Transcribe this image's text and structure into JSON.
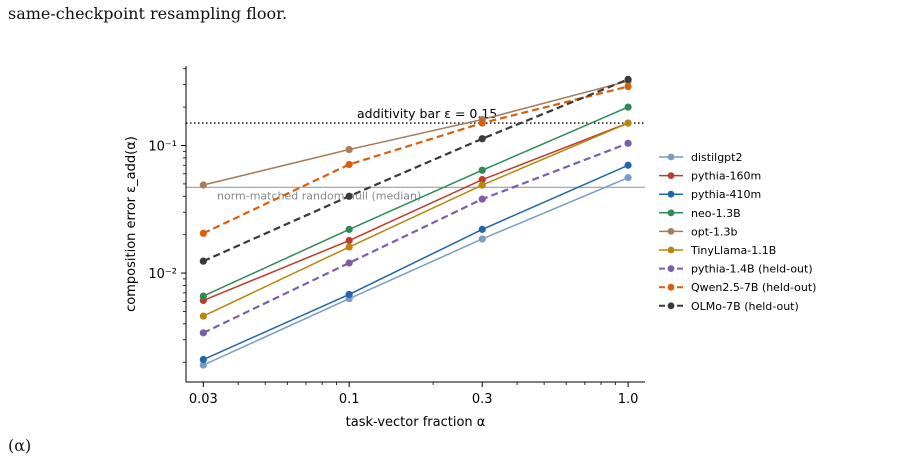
{
  "page": {
    "intro_text": "same-checkpoint resampling floor.",
    "footer_text": "(α)"
  },
  "chart_data": {
    "type": "line",
    "xlabel": "task-vector fraction α",
    "ylabel": "composition error ε_add(α)",
    "x_scale": "log",
    "y_scale": "log",
    "xlim": [
      0.026,
      1.15
    ],
    "ylim": [
      0.0014,
      0.42
    ],
    "x_ticks": [
      {
        "value": 0.03,
        "label": "0.03"
      },
      {
        "value": 0.1,
        "label": "0.1"
      },
      {
        "value": 0.3,
        "label": "0.3"
      },
      {
        "value": 1.0,
        "label": "1.0"
      }
    ],
    "y_ticks": [
      {
        "value": 0.01,
        "label": "10⁻²"
      },
      {
        "value": 0.1,
        "label": "10⁻¹"
      }
    ],
    "x": [
      0.03,
      0.1,
      0.3,
      1.0
    ],
    "series": [
      {
        "name": "distilgpt2",
        "color": "#7a9cc6",
        "dashed": false,
        "values": [
          0.0019,
          0.0063,
          0.0185,
          0.056
        ]
      },
      {
        "name": "pythia-160m",
        "color": "#c0392b",
        "dashed": false,
        "values": [
          0.0061,
          0.018,
          0.054,
          0.15
        ]
      },
      {
        "name": "pythia-410m",
        "color": "#2166ac",
        "dashed": false,
        "values": [
          0.0021,
          0.0068,
          0.022,
          0.07
        ]
      },
      {
        "name": "neo-1.3B",
        "color": "#2e8b57",
        "dashed": false,
        "values": [
          0.0066,
          0.022,
          0.064,
          0.2
        ]
      },
      {
        "name": "opt-1.3b",
        "color": "#a87c5a",
        "dashed": false,
        "values": [
          0.049,
          0.093,
          0.16,
          0.32
        ]
      },
      {
        "name": "TinyLlama-1.1B",
        "color": "#b8860b",
        "dashed": false,
        "values": [
          0.0046,
          0.016,
          0.049,
          0.15
        ]
      },
      {
        "name": "pythia-1.4B (held-out)",
        "color": "#7b5ea7",
        "dashed": true,
        "values": [
          0.0034,
          0.012,
          0.038,
          0.104
        ]
      },
      {
        "name": "Qwen2.5-7B (held-out)",
        "color": "#d95f0e",
        "dashed": true,
        "values": [
          0.0205,
          0.071,
          0.15,
          0.29
        ]
      },
      {
        "name": "OLMo-7B (held-out)",
        "color": "#3a3a3a",
        "dashed": true,
        "values": [
          0.0124,
          0.04,
          0.113,
          0.33
        ]
      }
    ],
    "reference_lines": [
      {
        "label": "additivity bar ε = 0.15",
        "value": 0.15,
        "style": "dotted",
        "color": "#000000"
      },
      {
        "label": "norm-matched random null (median)",
        "value": 0.047,
        "style": "solid",
        "color": "#9e9e9e"
      }
    ],
    "legend_position": "right"
  }
}
